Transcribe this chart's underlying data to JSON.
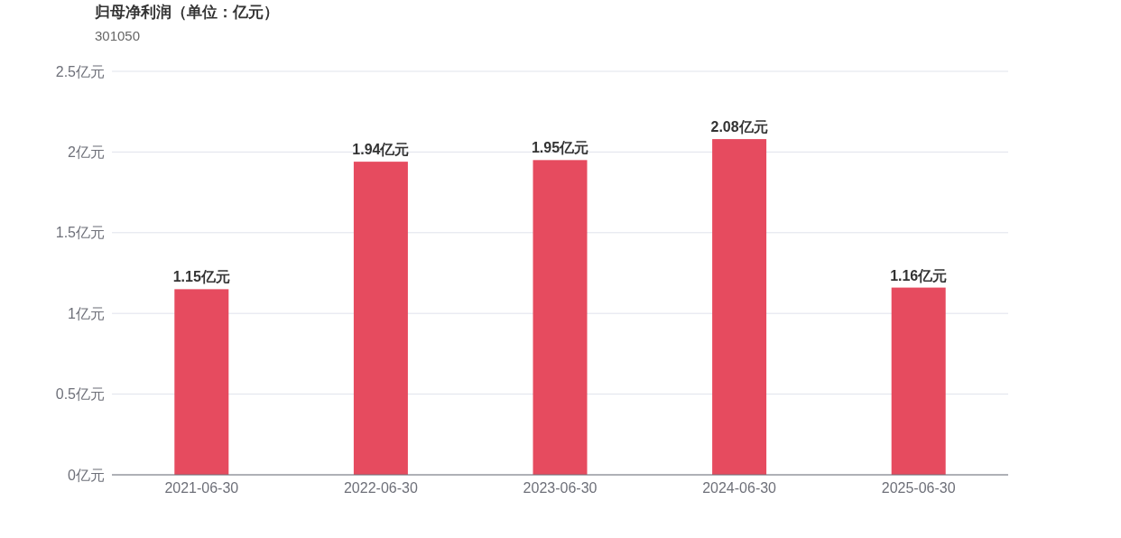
{
  "chart_data": {
    "type": "bar",
    "title": "归母净利润（单位：亿元）",
    "subtitle": "301050",
    "categories": [
      "2021-06-30",
      "2022-06-30",
      "2023-06-30",
      "2024-06-30",
      "2025-06-30"
    ],
    "values": [
      1.15,
      1.94,
      1.95,
      2.08,
      1.16
    ],
    "value_labels": [
      "1.15亿元",
      "1.94亿元",
      "1.95亿元",
      "2.08亿元",
      "1.16亿元"
    ],
    "color": "#e64b5f",
    "ylim": [
      0,
      2.5
    ],
    "yticks": [
      {
        "value": 0,
        "label": "0亿元"
      },
      {
        "value": 0.5,
        "label": "0.5亿元"
      },
      {
        "value": 1,
        "label": "1亿元"
      },
      {
        "value": 1.5,
        "label": "1.5亿元"
      },
      {
        "value": 2,
        "label": "2亿元"
      },
      {
        "value": 2.5,
        "label": "2.5亿元"
      }
    ],
    "grid": "y"
  }
}
